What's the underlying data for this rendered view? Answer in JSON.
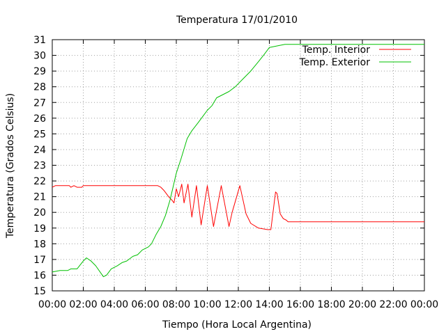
{
  "chart_data": {
    "type": "line",
    "title": "Temperatura 17/01/2010",
    "xlabel": "Tiempo (Hora Local Argentina)",
    "ylabel": "Temperatura (Grados Celsius)",
    "x_unit": "hours",
    "xlim": [
      0,
      24
    ],
    "ylim": [
      15,
      31
    ],
    "x_ticks": [
      0,
      2,
      4,
      6,
      8,
      10,
      12,
      14,
      16,
      18,
      20,
      22,
      24
    ],
    "x_tick_labels": [
      "00:00",
      "02:00",
      "04:00",
      "06:00",
      "08:00",
      "10:00",
      "12:00",
      "14:00",
      "16:00",
      "18:00",
      "20:00",
      "22:00",
      "00:00"
    ],
    "y_ticks": [
      15,
      16,
      17,
      18,
      19,
      20,
      21,
      22,
      23,
      24,
      25,
      26,
      27,
      28,
      29,
      30,
      31
    ],
    "y_tick_labels": [
      "15",
      "16",
      "17",
      "18",
      "19",
      "20",
      "21",
      "22",
      "23",
      "24",
      "25",
      "26",
      "27",
      "28",
      "29",
      "30",
      "31"
    ],
    "grid": true,
    "legend_position": "top-right",
    "series": [
      {
        "name": "Temp. Interior",
        "color": "#ff0000",
        "points": [
          [
            0.0,
            21.6
          ],
          [
            0.2,
            21.7
          ],
          [
            1.1,
            21.7
          ],
          [
            1.2,
            21.6
          ],
          [
            1.4,
            21.7
          ],
          [
            1.6,
            21.6
          ],
          [
            1.9,
            21.6
          ],
          [
            2.0,
            21.7
          ],
          [
            6.8,
            21.7
          ],
          [
            7.0,
            21.6
          ],
          [
            7.2,
            21.4
          ],
          [
            7.5,
            21.0
          ],
          [
            7.7,
            20.8
          ],
          [
            7.85,
            20.6
          ],
          [
            8.0,
            21.5
          ],
          [
            8.15,
            21.0
          ],
          [
            8.35,
            21.8
          ],
          [
            8.5,
            20.6
          ],
          [
            8.75,
            21.8
          ],
          [
            9.0,
            19.7
          ],
          [
            9.3,
            21.7
          ],
          [
            9.6,
            19.2
          ],
          [
            10.0,
            21.7
          ],
          [
            10.4,
            19.1
          ],
          [
            10.9,
            21.7
          ],
          [
            11.4,
            19.1
          ],
          [
            11.6,
            20.0
          ],
          [
            12.1,
            21.7
          ],
          [
            12.5,
            19.9
          ],
          [
            12.8,
            19.3
          ],
          [
            13.3,
            19.0
          ],
          [
            13.9,
            18.9
          ],
          [
            14.1,
            18.9
          ],
          [
            14.4,
            21.3
          ],
          [
            14.5,
            21.2
          ],
          [
            14.7,
            19.9
          ],
          [
            14.9,
            19.6
          ],
          [
            15.1,
            19.5
          ],
          [
            15.2,
            19.4
          ],
          [
            24.0,
            19.4
          ]
        ]
      },
      {
        "name": "Temp. Exterior",
        "color": "#00c000",
        "points": [
          [
            0.0,
            16.2
          ],
          [
            0.5,
            16.3
          ],
          [
            1.0,
            16.3
          ],
          [
            1.2,
            16.4
          ],
          [
            1.6,
            16.4
          ],
          [
            2.0,
            16.9
          ],
          [
            2.2,
            17.1
          ],
          [
            2.5,
            16.9
          ],
          [
            2.8,
            16.6
          ],
          [
            3.3,
            15.9
          ],
          [
            3.5,
            16.0
          ],
          [
            3.8,
            16.4
          ],
          [
            4.2,
            16.6
          ],
          [
            4.5,
            16.8
          ],
          [
            4.8,
            16.9
          ],
          [
            5.2,
            17.2
          ],
          [
            5.5,
            17.3
          ],
          [
            5.8,
            17.6
          ],
          [
            6.2,
            17.8
          ],
          [
            6.4,
            18.0
          ],
          [
            6.7,
            18.6
          ],
          [
            7.0,
            19.1
          ],
          [
            7.3,
            19.8
          ],
          [
            7.6,
            20.8
          ],
          [
            8.0,
            22.5
          ],
          [
            8.3,
            23.4
          ],
          [
            8.7,
            24.7
          ],
          [
            9.0,
            25.2
          ],
          [
            9.4,
            25.7
          ],
          [
            9.7,
            26.1
          ],
          [
            10.0,
            26.5
          ],
          [
            10.3,
            26.8
          ],
          [
            10.6,
            27.3
          ],
          [
            11.0,
            27.5
          ],
          [
            11.4,
            27.7
          ],
          [
            11.8,
            28.0
          ],
          [
            12.3,
            28.5
          ],
          [
            12.8,
            29.0
          ],
          [
            13.3,
            29.6
          ],
          [
            13.7,
            30.1
          ],
          [
            14.0,
            30.5
          ],
          [
            14.5,
            30.6
          ],
          [
            15.0,
            30.7
          ],
          [
            24.0,
            30.7
          ]
        ]
      }
    ]
  }
}
